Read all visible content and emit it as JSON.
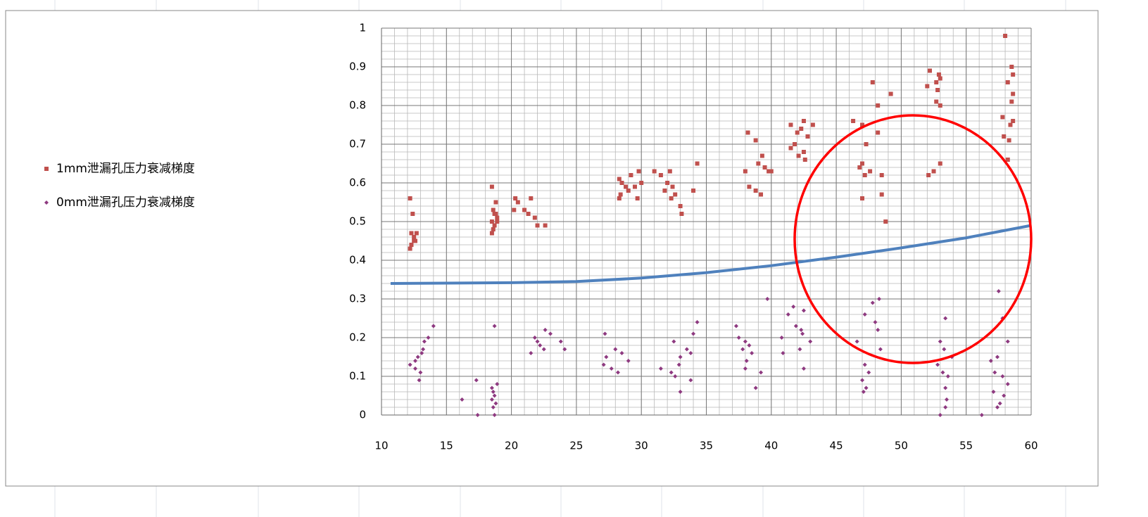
{
  "chart_data": {
    "type": "scatter",
    "xlim": [
      10,
      60
    ],
    "xticks": [
      10,
      15,
      20,
      25,
      30,
      35,
      40,
      45,
      50,
      55,
      60
    ],
    "ylim": [
      0,
      1
    ],
    "yticks": [
      0,
      0.1,
      0.2,
      0.3,
      0.4,
      0.5,
      0.6,
      0.7,
      0.8,
      0.9,
      1
    ],
    "grid": true,
    "minor_grid": {
      "x_step": 1,
      "y_step": 0.02
    },
    "legend": "left",
    "series": [
      {
        "name": "1mm泄漏孔压力衰减梯度",
        "color": "#c0504d",
        "marker": "square",
        "x": [
          12.2,
          12.4,
          12.3,
          12.5,
          12.6,
          12.3,
          12.2,
          12.7,
          12.5,
          18.5,
          18.8,
          18.6,
          18.7,
          18.9,
          18.5,
          18.7,
          18.6,
          18.5,
          18.8,
          18.9,
          20.3,
          20.5,
          20.2,
          21,
          21.5,
          21.3,
          21.8,
          22,
          22.6,
          28.3,
          28.5,
          28.8,
          29,
          28.4,
          28.3,
          29.2,
          29.8,
          30,
          29.5,
          29.7,
          31,
          31.5,
          32,
          32.4,
          31.8,
          32.6,
          32.3,
          33,
          33.1,
          34,
          32.2,
          34.3,
          38.2,
          38.8,
          39.3,
          39,
          39.5,
          38,
          40,
          38.3,
          38.8,
          39.2,
          39.8,
          41.5,
          42.3,
          42,
          42.8,
          41.8,
          41.5,
          42.5,
          42.1,
          42.6,
          43.2,
          42.5,
          46.3,
          47,
          47.3,
          47,
          46.8,
          47.6,
          47.2,
          47,
          47.8,
          48.2,
          48.2,
          48.5,
          48.5,
          48.8,
          49.2,
          52.2,
          52.9,
          53,
          52.7,
          52,
          52.8,
          52.7,
          53,
          53,
          52.5,
          52.1,
          58,
          58.5,
          58.6,
          58.2,
          58.6,
          58.5,
          57.8,
          58.6,
          58.4,
          57.9,
          58.3,
          58.2
        ],
        "values": [
          0.56,
          0.52,
          0.47,
          0.46,
          0.45,
          0.44,
          0.43,
          0.47,
          0.45,
          0.59,
          0.55,
          0.53,
          0.52,
          0.51,
          0.5,
          0.49,
          0.48,
          0.47,
          0.52,
          0.5,
          0.56,
          0.55,
          0.53,
          0.53,
          0.56,
          0.52,
          0.51,
          0.49,
          0.49,
          0.61,
          0.6,
          0.59,
          0.58,
          0.57,
          0.56,
          0.62,
          0.63,
          0.6,
          0.59,
          0.56,
          0.63,
          0.62,
          0.6,
          0.59,
          0.58,
          0.57,
          0.56,
          0.54,
          0.52,
          0.58,
          0.63,
          0.65,
          0.73,
          0.71,
          0.67,
          0.65,
          0.64,
          0.63,
          0.63,
          0.59,
          0.58,
          0.57,
          0.63,
          0.75,
          0.74,
          0.73,
          0.72,
          0.7,
          0.69,
          0.68,
          0.67,
          0.66,
          0.75,
          0.76,
          0.76,
          0.75,
          0.7,
          0.65,
          0.64,
          0.63,
          0.62,
          0.56,
          0.86,
          0.8,
          0.73,
          0.62,
          0.57,
          0.5,
          0.83,
          0.89,
          0.88,
          0.87,
          0.86,
          0.85,
          0.84,
          0.81,
          0.8,
          0.65,
          0.63,
          0.62,
          0.98,
          0.9,
          0.88,
          0.86,
          0.83,
          0.81,
          0.77,
          0.76,
          0.75,
          0.72,
          0.71,
          0.66
        ]
      },
      {
        "name": "0mm泄漏孔压力衰减梯度",
        "color": "#8e3a80",
        "marker": "diamond",
        "x": [
          14,
          13.6,
          13.3,
          13.2,
          13.1,
          12.8,
          12.6,
          12.2,
          12.6,
          13,
          12.9,
          16.2,
          17.3,
          17.4,
          18.7,
          18.9,
          18.5,
          18.6,
          18.7,
          18.5,
          18.8,
          18.6,
          18.7,
          22.6,
          23,
          21.8,
          23.8,
          22.2,
          22.5,
          21.5,
          22,
          24.1,
          27.2,
          28,
          28.5,
          27.3,
          29,
          27.1,
          27.7,
          28.2,
          34.3,
          34,
          32.5,
          33.5,
          33.8,
          33,
          32.9,
          31.5,
          32.3,
          32.6,
          33.8,
          33,
          37.3,
          37.5,
          38,
          38.3,
          37.8,
          38.5,
          38.1,
          38,
          39.2,
          38.8,
          39.7,
          41.7,
          42.5,
          41.3,
          41.9,
          42.3,
          42.4,
          40.8,
          43,
          42.2,
          40.9,
          42.5,
          48.3,
          47.8,
          47.2,
          48,
          48.2,
          46.6,
          48.4,
          47.2,
          47.5,
          47,
          47.3,
          47.1,
          53.4,
          53,
          53.3,
          53.9,
          52.8,
          53.2,
          53.6,
          53.4,
          53.5,
          53.4,
          53,
          57.5,
          57.8,
          58.2,
          57.4,
          56.9,
          57.2,
          57.8,
          58.2,
          57.1,
          57.9,
          57.6,
          57.4,
          56.2
        ],
        "values": [
          0.23,
          0.2,
          0.19,
          0.17,
          0.16,
          0.15,
          0.14,
          0.13,
          0.12,
          0.11,
          0.09,
          0.04,
          0.09,
          0,
          0.23,
          0.08,
          0.07,
          0.06,
          0.05,
          0.04,
          0.03,
          0.02,
          0,
          0.22,
          0.21,
          0.2,
          0.19,
          0.18,
          0.17,
          0.16,
          0.19,
          0.17,
          0.21,
          0.17,
          0.16,
          0.15,
          0.14,
          0.13,
          0.12,
          0.11,
          0.24,
          0.21,
          0.19,
          0.17,
          0.16,
          0.15,
          0.13,
          0.12,
          0.11,
          0.1,
          0.09,
          0.06,
          0.23,
          0.2,
          0.19,
          0.18,
          0.17,
          0.16,
          0.14,
          0.12,
          0.11,
          0.07,
          0.3,
          0.28,
          0.27,
          0.26,
          0.23,
          0.22,
          0.21,
          0.2,
          0.19,
          0.17,
          0.16,
          0.12,
          0.3,
          0.29,
          0.26,
          0.24,
          0.22,
          0.19,
          0.17,
          0.13,
          0.11,
          0.09,
          0.07,
          0.06,
          0.25,
          0.19,
          0.17,
          0.15,
          0.13,
          0.11,
          0.1,
          0.07,
          0.04,
          0.02,
          0,
          0.32,
          0.25,
          0.19,
          0.15,
          0.14,
          0.11,
          0.1,
          0.08,
          0.06,
          0.05,
          0.03,
          0.02,
          0
        ]
      }
    ],
    "trend_line": {
      "color": "#4f81bd",
      "x": [
        10.7,
        15,
        20,
        25,
        30,
        35,
        40,
        45,
        50,
        55,
        60
      ],
      "values": [
        0.34,
        0.341,
        0.342,
        0.345,
        0.354,
        0.368,
        0.386,
        0.408,
        0.432,
        0.458,
        0.49
      ]
    }
  }
}
